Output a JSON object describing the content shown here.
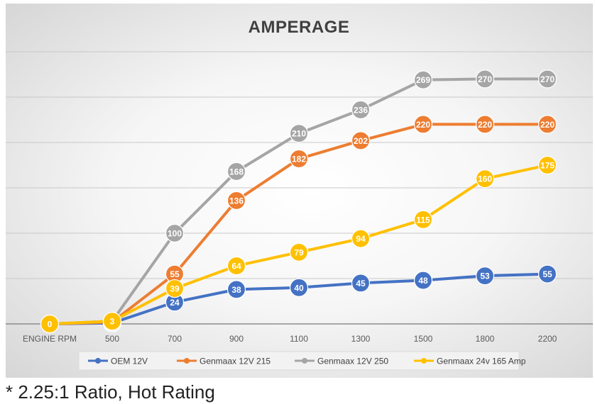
{
  "chart_data": {
    "type": "line",
    "title": "AMPERAGE",
    "categories": [
      "ENGINE RPM",
      "500",
      "700",
      "900",
      "1100",
      "1300",
      "1500",
      "1800",
      "2200"
    ],
    "ylim": [
      0,
      300
    ],
    "grid": true,
    "legend_position": "bottom",
    "series": [
      {
        "name": "OEM 12V",
        "color": "#4472C4",
        "values": [
          0,
          1,
          24,
          38,
          40,
          45,
          48,
          53,
          55
        ]
      },
      {
        "name": "Genmaax 12V 215",
        "color": "#ED7D31",
        "values": [
          0,
          2,
          55,
          136,
          182,
          202,
          220,
          220,
          220
        ]
      },
      {
        "name": "Genmaax 12V 250",
        "color": "#A5A5A5",
        "values": [
          0,
          3,
          100,
          168,
          210,
          236,
          269,
          270,
          270
        ]
      },
      {
        "name": "Genmaax 24v 165 Amp",
        "color": "#FFC000",
        "values": [
          0,
          3,
          39,
          64,
          79,
          94,
          115,
          160,
          175
        ]
      }
    ],
    "point_labels": true
  },
  "footnote": "* 2.25:1 Ratio, Hot Rating"
}
